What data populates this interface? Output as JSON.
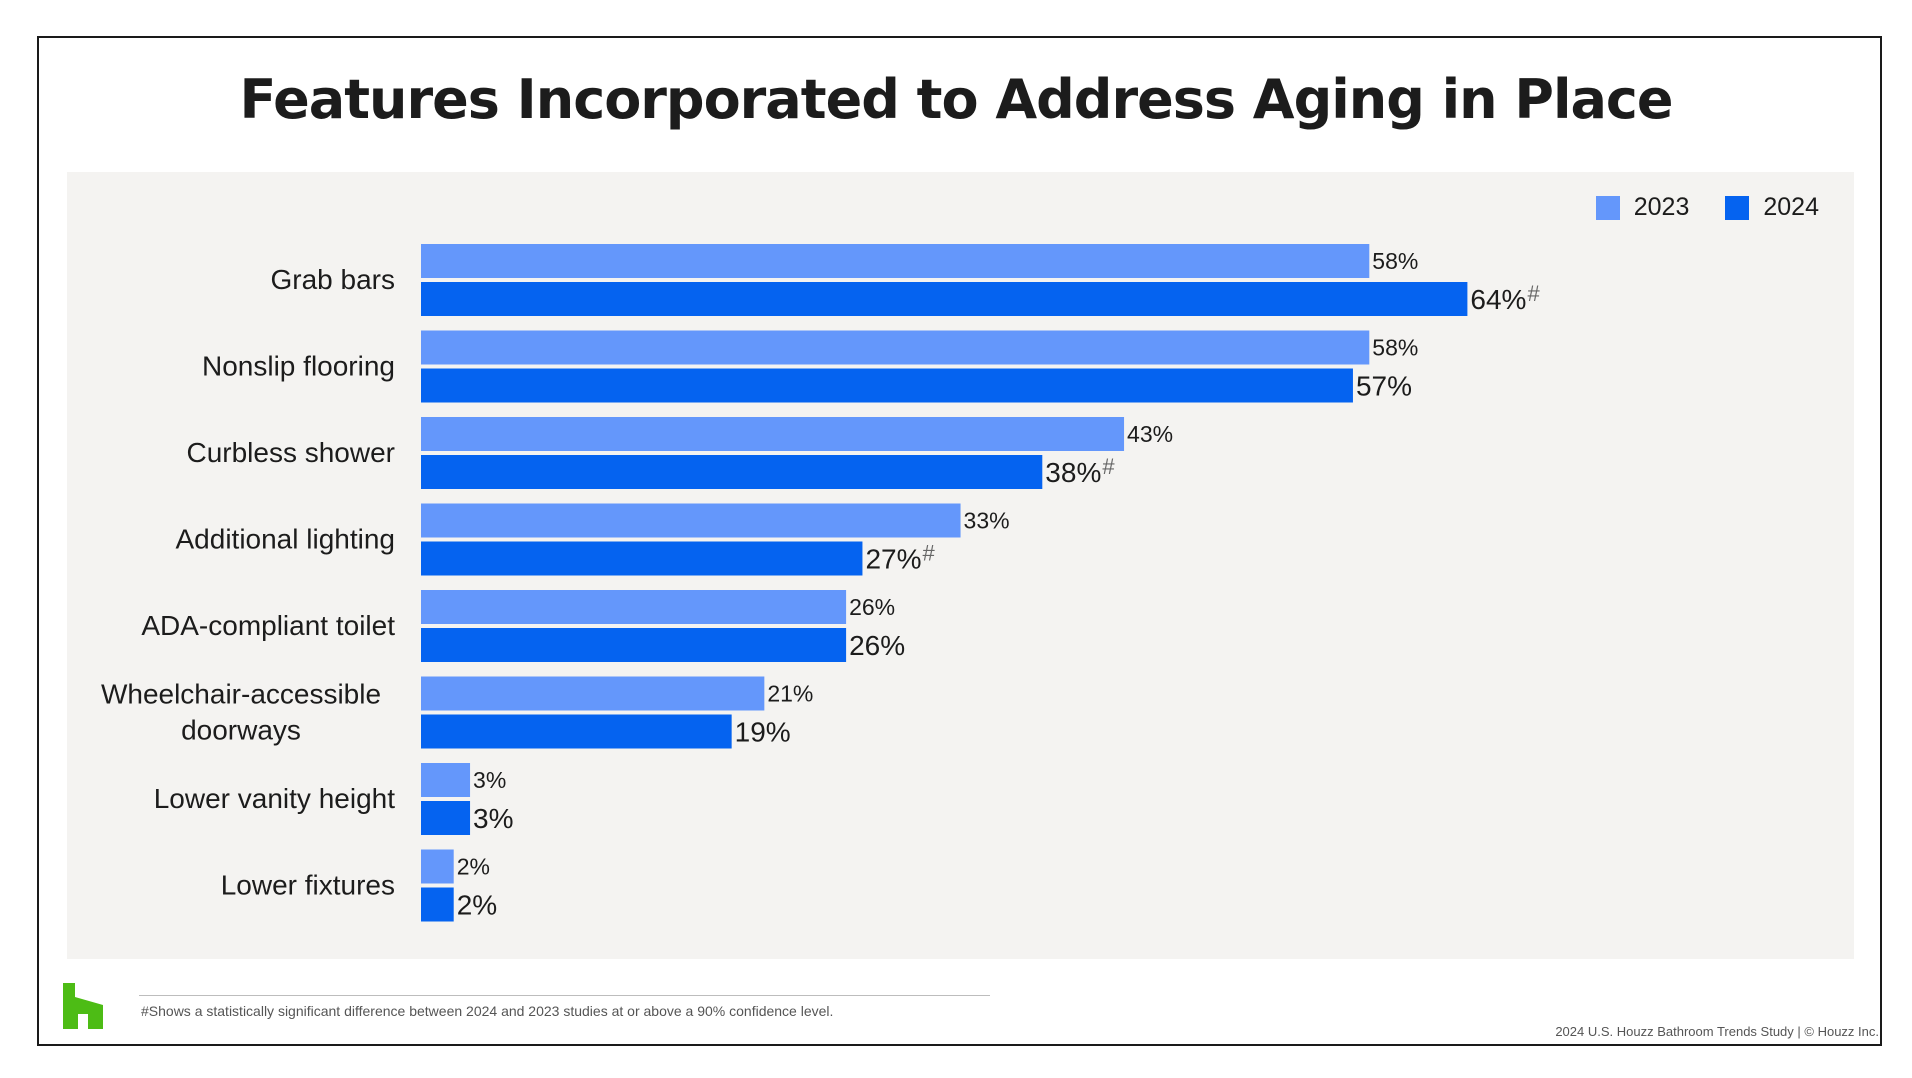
{
  "title": "Features Incorporated to Address Aging in Place",
  "legend": [
    {
      "label": "2023",
      "color": "#6497fb"
    },
    {
      "label": "2024",
      "color": "#0563f0"
    }
  ],
  "footnote": "#Shows a statistically significant difference between 2024 and 2023 studies at or above a 90% confidence level.",
  "source": "2024 U.S. Houzz Bathroom Trends Study  |  © Houzz Inc.",
  "logo": {
    "icon": "houzz-logo-icon",
    "color": "#4dbc15"
  },
  "chart_data": {
    "type": "bar",
    "orientation": "horizontal",
    "title": "Features Incorporated to Address Aging in Place",
    "categories": [
      "Grab bars",
      "Nonslip flooring",
      "Curbless shower",
      "Additional lighting",
      "ADA-compliant toilet",
      "Wheelchair-accessible doorways",
      "Lower vanity height",
      "Lower fixtures"
    ],
    "series": [
      {
        "name": "2023",
        "color": "#6497fb",
        "values": [
          58,
          58,
          43,
          33,
          26,
          21,
          3,
          2
        ],
        "labels": [
          "58%",
          "58%",
          "43%",
          "33%",
          "26%",
          "21%",
          "3%",
          "2%"
        ],
        "significant": [
          false,
          false,
          false,
          false,
          false,
          false,
          false,
          false
        ]
      },
      {
        "name": "2024",
        "color": "#0563f0",
        "values": [
          64,
          57,
          38,
          27,
          26,
          19,
          3,
          2
        ],
        "labels": [
          "64%",
          "57%",
          "38%",
          "27%",
          "26%",
          "19%",
          "3%",
          "2%"
        ],
        "significant": [
          true,
          false,
          true,
          true,
          false,
          false,
          false,
          false
        ]
      }
    ],
    "significance_marker": "#",
    "unit": "%",
    "xlim": [
      0,
      100
    ],
    "grid": false,
    "legend_position": "top-right"
  }
}
